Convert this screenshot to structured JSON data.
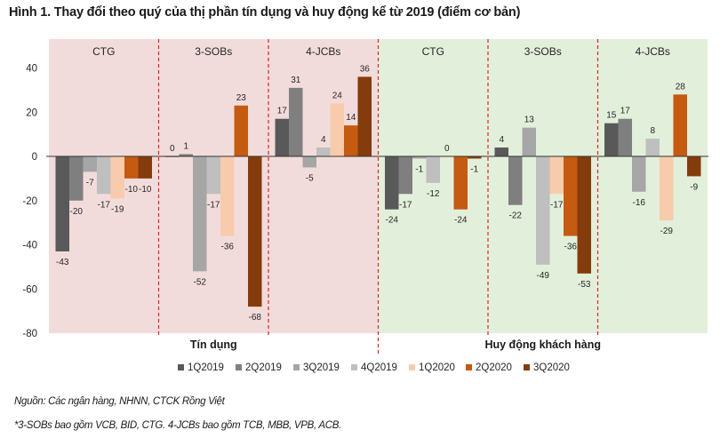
{
  "title": "Hình 1. Thay đổi theo quý của thị phần tín dụng và huy động kể từ 2019 (điểm cơ bản)",
  "chart_data": {
    "type": "bar",
    "title": "Hình 1. Thay đổi theo quý của thị phần tín dụng và huy động kể từ 2019 (điểm cơ bản)",
    "xlabel": "",
    "ylabel": "",
    "ylim": [
      -80,
      50
    ],
    "yticks": [
      40,
      20,
      0,
      -20,
      -40,
      -60,
      -80
    ],
    "grid": false,
    "legend_position": "bottom",
    "super_groups": [
      {
        "label": "Tín dụng",
        "background": "#f2dcdb",
        "groups": [
          0,
          1,
          2
        ]
      },
      {
        "label": "Huy động khách hàng",
        "background": "#e2efda",
        "groups": [
          3,
          4,
          5
        ]
      }
    ],
    "categories": [
      "CTG",
      "3-SOBs",
      "4-JCBs",
      "CTG",
      "3-SOBs",
      "4-JCBs"
    ],
    "series": [
      {
        "name": "1Q2019",
        "color": "#595959",
        "values": [
          -43,
          0,
          17,
          -24,
          4,
          15
        ]
      },
      {
        "name": "2Q2019",
        "color": "#7f7f7f",
        "values": [
          -20,
          1,
          31,
          -17,
          -22,
          17
        ]
      },
      {
        "name": "3Q2019",
        "color": "#a6a6a6",
        "values": [
          -7,
          -52,
          -5,
          -1,
          13,
          -16
        ]
      },
      {
        "name": "4Q2019",
        "color": "#bfbfbf",
        "values": [
          -17,
          -17,
          4,
          -12,
          -49,
          8
        ]
      },
      {
        "name": "1Q2020",
        "color": "#f8cbad",
        "values": [
          -19,
          -36,
          24,
          0,
          -17,
          -29
        ]
      },
      {
        "name": "2Q2020",
        "color": "#c55a11",
        "values": [
          -10,
          23,
          14,
          -24,
          -36,
          28
        ]
      },
      {
        "name": "3Q2020",
        "color": "#843c0c",
        "values": [
          -10,
          -68,
          36,
          -1,
          -53,
          -9
        ]
      }
    ],
    "divider_color": "#d9262b"
  },
  "notes": {
    "source": "Nguồn: Các ngân hàng, NHNN, CTCK Rồng Việt",
    "footnote": "*3-SOBs bao gồm VCB, BID, CTG.  4-JCBs bao gồm TCB, MBB, VPB, ACB."
  }
}
